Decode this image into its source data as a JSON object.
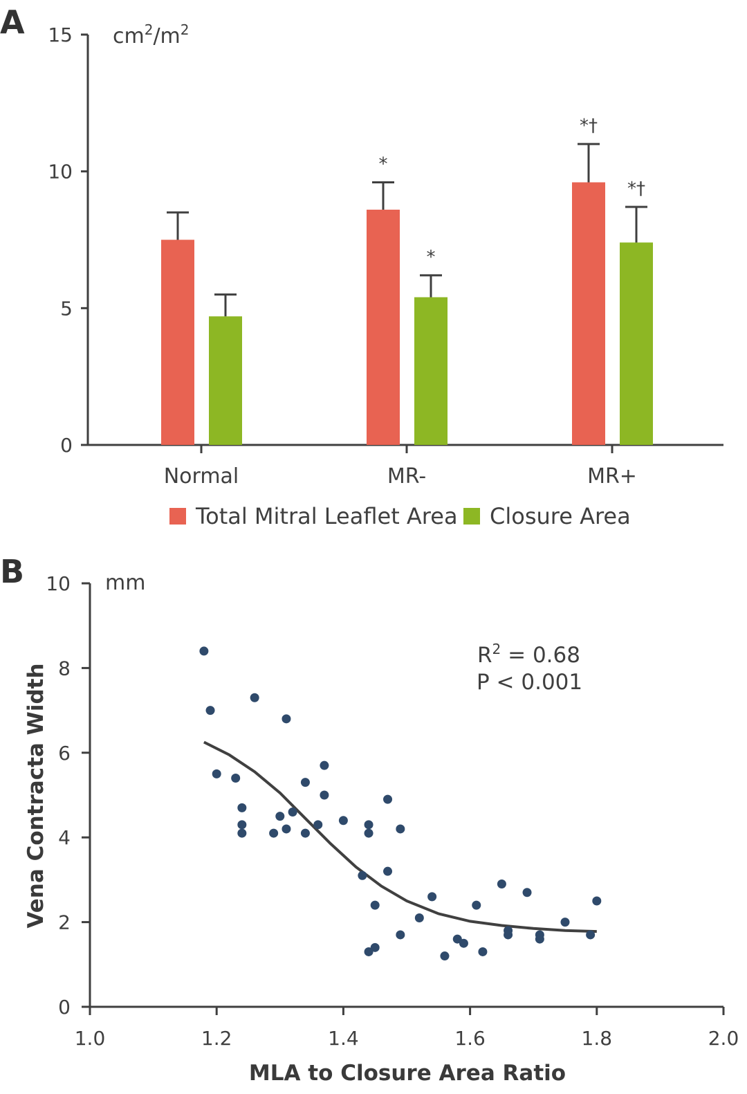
{
  "chart_data": [
    {
      "panel": "A",
      "type": "bar",
      "ylabel": "cm2/m2",
      "ylabel_text": "cm",
      "ylabel_sup1": "2",
      "ylabel_slash": "/m",
      "ylabel_sup2": "2",
      "xlabel": "",
      "ylim": [
        0,
        15
      ],
      "yticks": [
        "0",
        "5",
        "10",
        "15"
      ],
      "categories": [
        "Normal",
        "MR-",
        "MR+"
      ],
      "series": [
        {
          "name": "Total Mitral Leaflet Area",
          "color": "#e86352",
          "values": [
            7.5,
            8.6,
            9.6
          ],
          "errors": [
            1.0,
            1.0,
            1.4
          ]
        },
        {
          "name": "Closure Area",
          "color": "#8db724",
          "values": [
            4.7,
            5.4,
            7.4
          ],
          "errors": [
            0.8,
            0.8,
            1.3
          ]
        }
      ],
      "annotations": [
        {
          "series": 0,
          "category": 0,
          "text": ""
        },
        {
          "series": 1,
          "category": 0,
          "text": ""
        },
        {
          "series": 0,
          "category": 1,
          "text": "*"
        },
        {
          "series": 1,
          "category": 1,
          "text": "*"
        },
        {
          "series": 0,
          "category": 2,
          "text": "*†"
        },
        {
          "series": 1,
          "category": 2,
          "text": "*†"
        }
      ],
      "legend_placement": "bottom-center"
    },
    {
      "panel": "B",
      "type": "scatter",
      "xlabel": "MLA to Closure Area Ratio",
      "ylabel": "Vena Contracta Width",
      "yunit": "mm",
      "xlim": [
        1.0,
        2.0
      ],
      "ylim": [
        0,
        10
      ],
      "xticks": [
        "1.0",
        "1.2",
        "1.4",
        "1.6",
        "1.8",
        "2.0"
      ],
      "yticks": [
        "0",
        "2",
        "4",
        "6",
        "8",
        "10"
      ],
      "stats": {
        "r2_label": "R",
        "r2_sup": "2",
        "r2_value": " = 0.68",
        "p_text": "P < 0.001"
      },
      "point_color": "#2f4a6b",
      "points": [
        {
          "x": 1.18,
          "y": 8.4
        },
        {
          "x": 1.19,
          "y": 7.0
        },
        {
          "x": 1.2,
          "y": 5.5
        },
        {
          "x": 1.23,
          "y": 5.4
        },
        {
          "x": 1.24,
          "y": 4.7
        },
        {
          "x": 1.24,
          "y": 4.3
        },
        {
          "x": 1.24,
          "y": 4.1
        },
        {
          "x": 1.26,
          "y": 7.3
        },
        {
          "x": 1.29,
          "y": 4.1
        },
        {
          "x": 1.3,
          "y": 4.5
        },
        {
          "x": 1.31,
          "y": 6.8
        },
        {
          "x": 1.31,
          "y": 4.2
        },
        {
          "x": 1.32,
          "y": 4.6
        },
        {
          "x": 1.34,
          "y": 5.3
        },
        {
          "x": 1.34,
          "y": 4.1
        },
        {
          "x": 1.36,
          "y": 4.3
        },
        {
          "x": 1.37,
          "y": 5.7
        },
        {
          "x": 1.37,
          "y": 5.0
        },
        {
          "x": 1.4,
          "y": 4.4
        },
        {
          "x": 1.43,
          "y": 3.1
        },
        {
          "x": 1.44,
          "y": 4.3
        },
        {
          "x": 1.44,
          "y": 4.1
        },
        {
          "x": 1.44,
          "y": 1.3
        },
        {
          "x": 1.45,
          "y": 2.4
        },
        {
          "x": 1.45,
          "y": 1.4
        },
        {
          "x": 1.47,
          "y": 4.9
        },
        {
          "x": 1.47,
          "y": 3.2
        },
        {
          "x": 1.49,
          "y": 4.2
        },
        {
          "x": 1.49,
          "y": 1.7
        },
        {
          "x": 1.52,
          "y": 2.1
        },
        {
          "x": 1.54,
          "y": 2.6
        },
        {
          "x": 1.56,
          "y": 1.2
        },
        {
          "x": 1.58,
          "y": 1.6
        },
        {
          "x": 1.59,
          "y": 1.5
        },
        {
          "x": 1.61,
          "y": 2.4
        },
        {
          "x": 1.62,
          "y": 1.3
        },
        {
          "x": 1.65,
          "y": 2.9
        },
        {
          "x": 1.66,
          "y": 1.8
        },
        {
          "x": 1.66,
          "y": 1.7
        },
        {
          "x": 1.69,
          "y": 2.7
        },
        {
          "x": 1.71,
          "y": 1.7
        },
        {
          "x": 1.71,
          "y": 1.6
        },
        {
          "x": 1.75,
          "y": 2.0
        },
        {
          "x": 1.79,
          "y": 1.7
        },
        {
          "x": 1.8,
          "y": 2.5
        }
      ],
      "fit_curve": [
        {
          "x": 1.18,
          "y": 6.25
        },
        {
          "x": 1.22,
          "y": 5.95
        },
        {
          "x": 1.26,
          "y": 5.55
        },
        {
          "x": 1.3,
          "y": 5.05
        },
        {
          "x": 1.34,
          "y": 4.45
        },
        {
          "x": 1.38,
          "y": 3.85
        },
        {
          "x": 1.42,
          "y": 3.3
        },
        {
          "x": 1.46,
          "y": 2.85
        },
        {
          "x": 1.5,
          "y": 2.5
        },
        {
          "x": 1.55,
          "y": 2.2
        },
        {
          "x": 1.6,
          "y": 2.02
        },
        {
          "x": 1.65,
          "y": 1.92
        },
        {
          "x": 1.7,
          "y": 1.85
        },
        {
          "x": 1.75,
          "y": 1.8
        },
        {
          "x": 1.8,
          "y": 1.78
        }
      ]
    }
  ]
}
